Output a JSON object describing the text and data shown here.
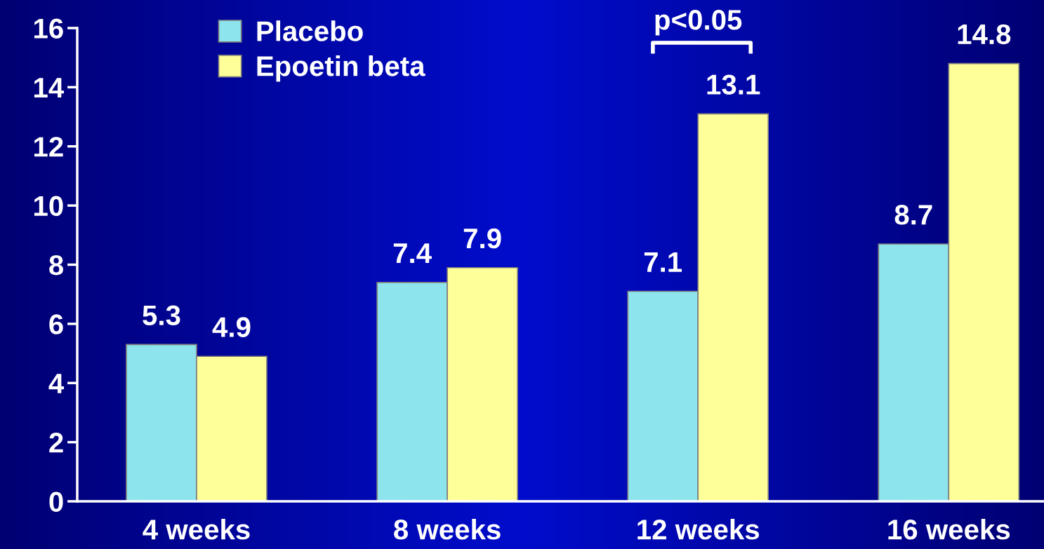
{
  "chart_data": {
    "type": "bar",
    "categories": [
      "4 weeks",
      "8 weeks",
      "12 weeks",
      "16 weeks"
    ],
    "series": [
      {
        "name": "Placebo",
        "color": "#8ee4ec",
        "values": [
          5.3,
          7.4,
          7.1,
          8.7
        ]
      },
      {
        "name": "Epoetin beta",
        "color": "#ffff99",
        "values": [
          4.9,
          7.9,
          13.1,
          14.8
        ]
      }
    ],
    "ylim": [
      0,
      16
    ],
    "yticks": [
      0,
      2,
      4,
      6,
      8,
      10,
      12,
      14,
      16
    ],
    "grid": false,
    "legend": "top left",
    "data_labels": true,
    "annotations": [
      "p<0.05"
    ]
  }
}
